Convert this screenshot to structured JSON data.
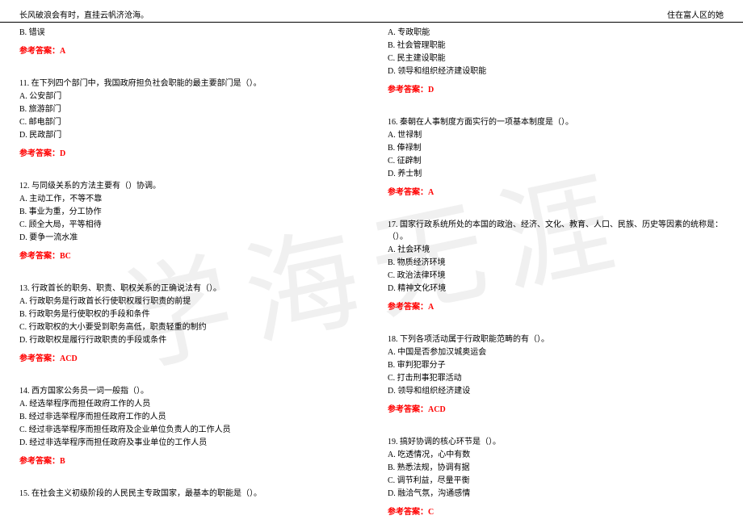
{
  "header": {
    "left": "长风破浪会有时，直挂云帆济沧海。",
    "right": "住在富人区的她"
  },
  "watermark": "学海无涯",
  "left_col": {
    "item_b": "B. 错误",
    "ans10": "参考答案：A",
    "q11": {
      "stem": "11. 在下列四个部门中，我国政府担负社会职能的最主要部门是（）。",
      "a": "A. 公安部门",
      "b": "B. 旅游部门",
      "c": "C. 邮电部门",
      "d": "D. 民政部门",
      "ans": "参考答案：D"
    },
    "q12": {
      "stem": "12. 与同级关系的方法主要有（）协调。",
      "a": "A. 主动工作，不等不靠",
      "b": "B. 事业为重，分工协作",
      "c": "C. 顾全大局，平等相待",
      "d": "D. 要争一流水准",
      "ans": "参考答案：BC"
    },
    "q13": {
      "stem": "13. 行政首长的职务、职责、职权关系的正确说法有（）。",
      "a": "A. 行政职务是行政首长行使职权履行职责的前提",
      "b": "B. 行政职务是行使职权的手段和条件",
      "c": "C. 行政职权的大小要受到职务高低，职责轻重的制约",
      "d": "D. 行政职权是履行行政职责的手段或条件",
      "ans": "参考答案：ACD"
    },
    "q14": {
      "stem": "14. 西方国家公务员一词一般指（）。",
      "a": "A. 经选举程序而担任政府工作的人员",
      "b": "B. 经过非选举程序而担任政府工作的人员",
      "c": "C. 经过非选举程序而担任政府及企业单位负责人的工作人员",
      "d": "D. 经过非选举程序而担任政府及事业单位的工作人员",
      "ans": "参考答案：B"
    },
    "q15": {
      "stem": "15. 在社会主义初级阶段的人民民主专政国家，最基本的职能是（）。"
    }
  },
  "right_col": {
    "q15opts": {
      "a": "A. 专政职能",
      "b": "B. 社会管理职能",
      "c": "C. 民主建设职能",
      "d": "D. 领导和组织经济建设职能",
      "ans": "参考答案：D"
    },
    "q16": {
      "stem": "16. 秦朝在人事制度方面实行的一项基本制度是（）。",
      "a": "A. 世禄制",
      "b": "B. 俸禄制",
      "c": "C. 征辟制",
      "d": "D. 养士制",
      "ans": "参考答案：A"
    },
    "q17": {
      "stem": "17. 国家行政系统所处的本国的政治、经济、文化、教育、人口、民族、历史等因素的统称是：（）。",
      "a": "A. 社会环境",
      "b": "B. 物质经济环境",
      "c": "C. 政治法律环境",
      "d": "D. 精神文化环境",
      "ans": "参考答案：A"
    },
    "q18": {
      "stem": "18. 下列各项活动属于行政职能范畴的有（）。",
      "a": "A. 中国是否参加汉城奥运会",
      "b": "B. 审判犯罪分子",
      "c": "C. 打击刑事犯罪活动",
      "d": "D. 领导和组织经济建设",
      "ans": "参考答案：ACD"
    },
    "q19": {
      "stem": "19. 搞好协调的核心环节是（）。",
      "a": "A. 吃透情况，心中有数",
      "b": "B. 熟悉法规，协调有据",
      "c": "C. 调节利益，尽量平衡",
      "d": "D. 融洽气氛，沟通感情",
      "ans": "参考答案：C"
    }
  }
}
